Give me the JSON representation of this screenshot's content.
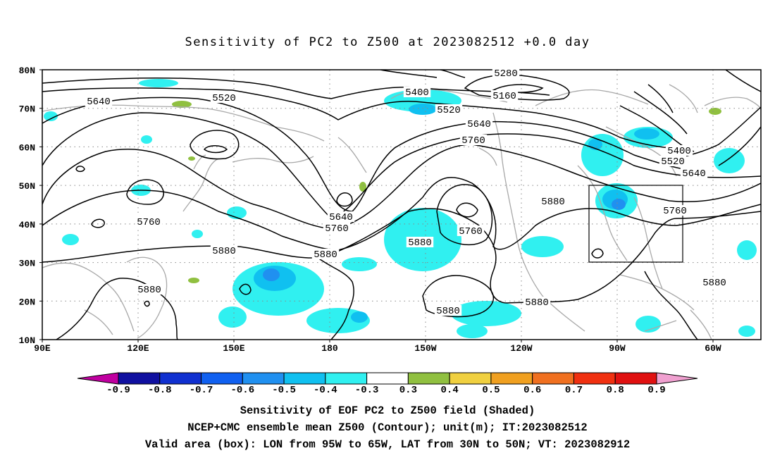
{
  "title": "Sensitivity of PC2 to Z500 at 2023082512 +0.0 day",
  "map": {
    "lat_labels": [
      "80N",
      "70N",
      "60N",
      "50N",
      "40N",
      "30N",
      "20N",
      "10N"
    ],
    "lon_labels": [
      "90E",
      "120E",
      "150E",
      "180",
      "150W",
      "120W",
      "90W",
      "60W"
    ],
    "contour_labels": [
      {
        "text": "5280"
      },
      {
        "text": "5160"
      },
      {
        "text": "5400"
      },
      {
        "text": "5520"
      },
      {
        "text": "5640"
      },
      {
        "text": "5520"
      },
      {
        "text": "5640"
      },
      {
        "text": "5760"
      },
      {
        "text": "5400"
      },
      {
        "text": "5520"
      },
      {
        "text": "5640"
      },
      {
        "text": "5760"
      },
      {
        "text": "5880"
      },
      {
        "text": "5640"
      },
      {
        "text": "5760"
      },
      {
        "text": "5760"
      },
      {
        "text": "5760"
      },
      {
        "text": "5880"
      },
      {
        "text": "5880"
      },
      {
        "text": "5880"
      },
      {
        "text": "5880"
      },
      {
        "text": "5880"
      },
      {
        "text": "5880"
      },
      {
        "text": "5880"
      }
    ],
    "valid_box": {
      "lon_range": "95W-65W",
      "lat_range": "30N-50N"
    }
  },
  "colorbar": {
    "labels": [
      "-0.9",
      "-0.8",
      "-0.7",
      "-0.6",
      "-0.5",
      "-0.4",
      "-0.3",
      "0.3",
      "0.4",
      "0.5",
      "0.6",
      "0.7",
      "0.8",
      "0.9"
    ],
    "colors": [
      "#c000a0",
      "#1010a0",
      "#1030d0",
      "#1060f0",
      "#2090f0",
      "#10c0f0",
      "#30f0f0",
      "#ffffff",
      "#90c040",
      "#f0d040",
      "#f0a020",
      "#f07020",
      "#f03010",
      "#e01010",
      "#f0a0d0"
    ]
  },
  "footer": {
    "line1": "Sensitivity of EOF PC2 to Z500 field (Shaded)",
    "line2": "NCEP+CMC ensemble mean Z500 (Contour); unit(m); IT:2023082512",
    "line3": "Valid area (box): LON from 95W to 65W, LAT from 30N to 50N; VT: 2023082912"
  }
}
